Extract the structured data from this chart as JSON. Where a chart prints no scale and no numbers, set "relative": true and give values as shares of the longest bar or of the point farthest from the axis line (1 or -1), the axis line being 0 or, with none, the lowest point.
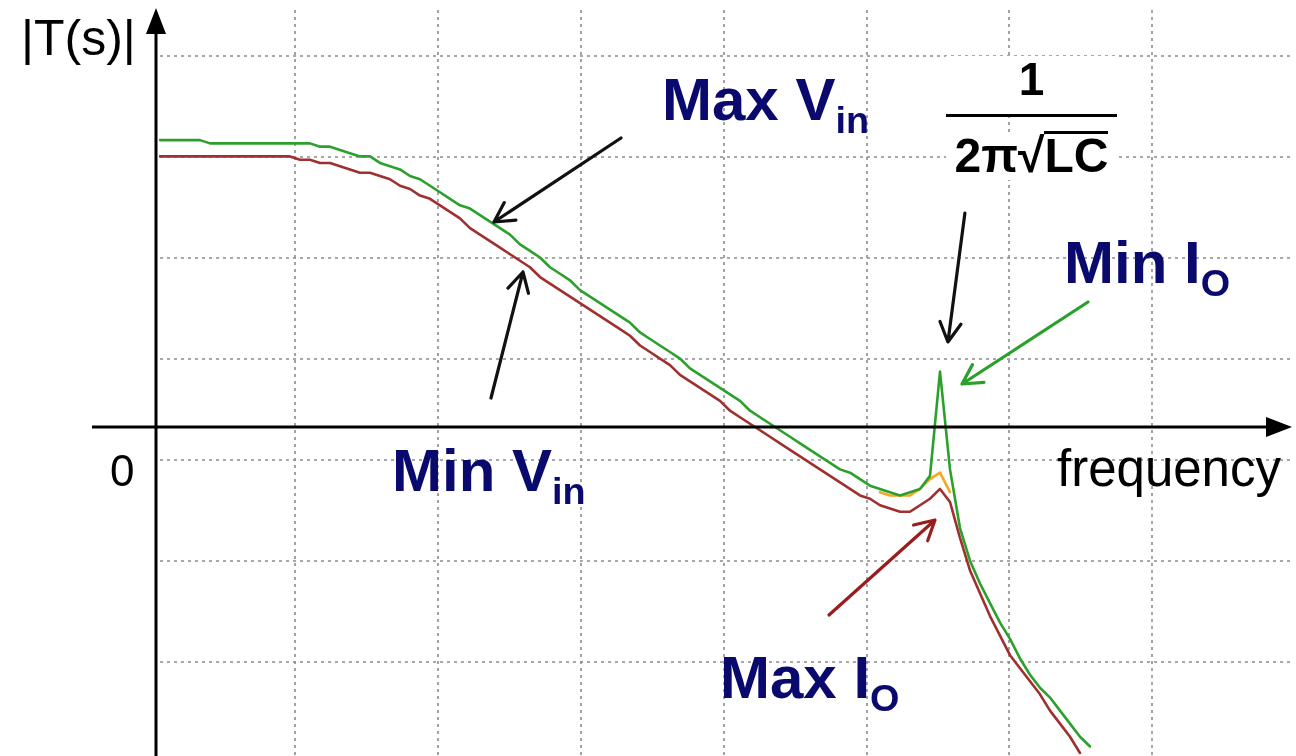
{
  "chart_data": {
    "type": "line",
    "relative": true,
    "xlabel": "frequency",
    "ylabel": "|T(s)|",
    "grid": true,
    "categories": [
      null,
      null,
      null,
      null,
      null,
      null,
      null,
      null,
      null,
      null,
      null,
      null,
      null,
      null,
      null,
      null,
      null,
      null,
      null,
      null,
      null,
      null,
      null,
      null,
      null,
      null,
      null,
      null,
      null,
      null,
      null,
      null,
      null,
      null,
      null,
      null,
      null,
      null,
      null,
      null,
      null,
      null,
      null,
      null,
      null,
      null,
      null,
      null,
      null,
      null,
      null,
      null,
      null,
      null,
      null,
      null,
      null,
      null,
      null,
      null,
      null,
      null,
      null,
      null,
      null,
      null,
      null,
      null,
      null,
      null,
      null,
      null,
      null,
      null,
      null,
      null,
      null,
      null,
      null,
      null,
      null,
      null,
      null,
      null,
      null,
      null,
      null,
      null,
      null,
      null,
      null,
      null,
      null,
      null
    ],
    "series": [
      {
        "color": "#2ca02c",
        "values": [
          0.88,
          0.88,
          0.88,
          0.88,
          0.88,
          0.87,
          0.87,
          0.87,
          0.87,
          0.87,
          0.87,
          0.87,
          0.87,
          0.87,
          0.87,
          0.87,
          0.86,
          0.86,
          0.85,
          0.84,
          0.83,
          0.83,
          0.81,
          0.8,
          0.79,
          0.77,
          0.76,
          0.74,
          0.72,
          0.7,
          0.68,
          0.67,
          0.65,
          0.63,
          0.61,
          0.59,
          0.56,
          0.54,
          0.52,
          0.49,
          0.47,
          0.45,
          0.42,
          0.4,
          0.38,
          0.36,
          0.34,
          0.32,
          0.29,
          0.27,
          0.25,
          0.23,
          0.21,
          0.18,
          0.16,
          0.14,
          0.12,
          0.1,
          0.08,
          0.05,
          0.03,
          0.01,
          -0.01,
          -0.03,
          -0.05,
          -0.07,
          -0.09,
          -0.11,
          -0.13,
          -0.14,
          -0.16,
          -0.18,
          -0.19,
          -0.2,
          -0.21,
          -0.2,
          -0.19,
          -0.15,
          0.17,
          -0.13,
          -0.31,
          -0.41,
          -0.48,
          -0.54,
          -0.6,
          -0.65,
          -0.71,
          -0.76,
          -0.8,
          -0.83,
          -0.87,
          -0.91,
          -0.95,
          -0.98
        ]
      },
      {
        "color": "#a03030",
        "values": [
          0.83,
          0.83,
          0.83,
          0.83,
          0.83,
          0.83,
          0.83,
          0.83,
          0.83,
          0.83,
          0.83,
          0.83,
          0.83,
          0.83,
          0.82,
          0.82,
          0.81,
          0.81,
          0.8,
          0.79,
          0.78,
          0.78,
          0.77,
          0.76,
          0.74,
          0.73,
          0.71,
          0.7,
          0.68,
          0.66,
          0.64,
          0.61,
          0.59,
          0.57,
          0.55,
          0.53,
          0.51,
          0.49,
          0.46,
          0.44,
          0.42,
          0.4,
          0.38,
          0.36,
          0.34,
          0.32,
          0.3,
          0.28,
          0.25,
          0.23,
          0.21,
          0.19,
          0.16,
          0.14,
          0.12,
          0.1,
          0.08,
          0.05,
          0.03,
          0.01,
          -0.01,
          -0.03,
          -0.05,
          -0.07,
          -0.09,
          -0.11,
          -0.13,
          -0.15,
          -0.17,
          -0.19,
          -0.21,
          -0.22,
          -0.24,
          -0.25,
          -0.26,
          -0.26,
          -0.24,
          -0.22,
          -0.19,
          -0.23,
          -0.34,
          -0.44,
          -0.51,
          -0.58,
          -0.64,
          -0.7,
          -0.74,
          -0.78,
          -0.82,
          -0.87,
          -0.91,
          -0.95,
          -1,
          null
        ]
      },
      {
        "color": "#f5a623",
        "values": [
          null,
          null,
          null,
          null,
          null,
          null,
          null,
          null,
          null,
          null,
          null,
          null,
          null,
          null,
          null,
          null,
          null,
          null,
          null,
          null,
          null,
          null,
          null,
          null,
          null,
          null,
          null,
          null,
          null,
          null,
          null,
          null,
          null,
          null,
          null,
          null,
          null,
          null,
          null,
          null,
          null,
          null,
          null,
          null,
          null,
          null,
          null,
          null,
          null,
          null,
          null,
          null,
          null,
          null,
          null,
          null,
          null,
          null,
          null,
          null,
          null,
          null,
          null,
          null,
          null,
          null,
          null,
          null,
          null,
          null,
          null,
          null,
          -0.2,
          -0.21,
          -0.21,
          -0.21,
          -0.19,
          -0.16,
          -0.14,
          -0.2,
          null,
          null,
          null,
          null,
          null,
          null,
          null,
          null,
          null,
          null,
          null,
          null,
          null,
          null
        ]
      }
    ],
    "annotations": [
      "Max V$_{in}$",
      "Min V$_{in}$",
      "1",
      "2π√LC",
      "Min I$_{O}$",
      "Max I$_{O}$",
      "0"
    ]
  }
}
